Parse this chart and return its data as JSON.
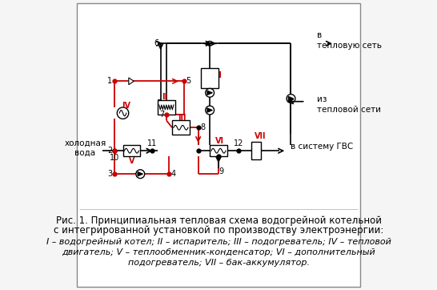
{
  "title_line1": "Рис. 1. Принципиальная тепловая схема водогрейной котельной",
  "title_line2": "с интегрированной установкой по производству электроэнергии:",
  "title_line3_italic": "I – водогрейный котел; II – испаритель; III – подогреватель; IV – тепловой",
  "title_line4_italic": "двигатель; V – теплообменник-конденсатор; VI – дополнительный",
  "title_line5_italic": "подогреватель; VII – бак-аккумулятор.",
  "label_cold_water": "холодная\nвода",
  "label_to_heat_net": "в\nтепловую сеть",
  "label_from_heat_net": "из\nтепловой сети",
  "label_to_gvs": "в систему ГВС",
  "bg_color": "#f0f0f0",
  "border_color": "#888888",
  "line_color_black": "#000000",
  "line_color_red": "#cc0000",
  "roman_color": "#cc0000",
  "font_size_caption": 8.5
}
